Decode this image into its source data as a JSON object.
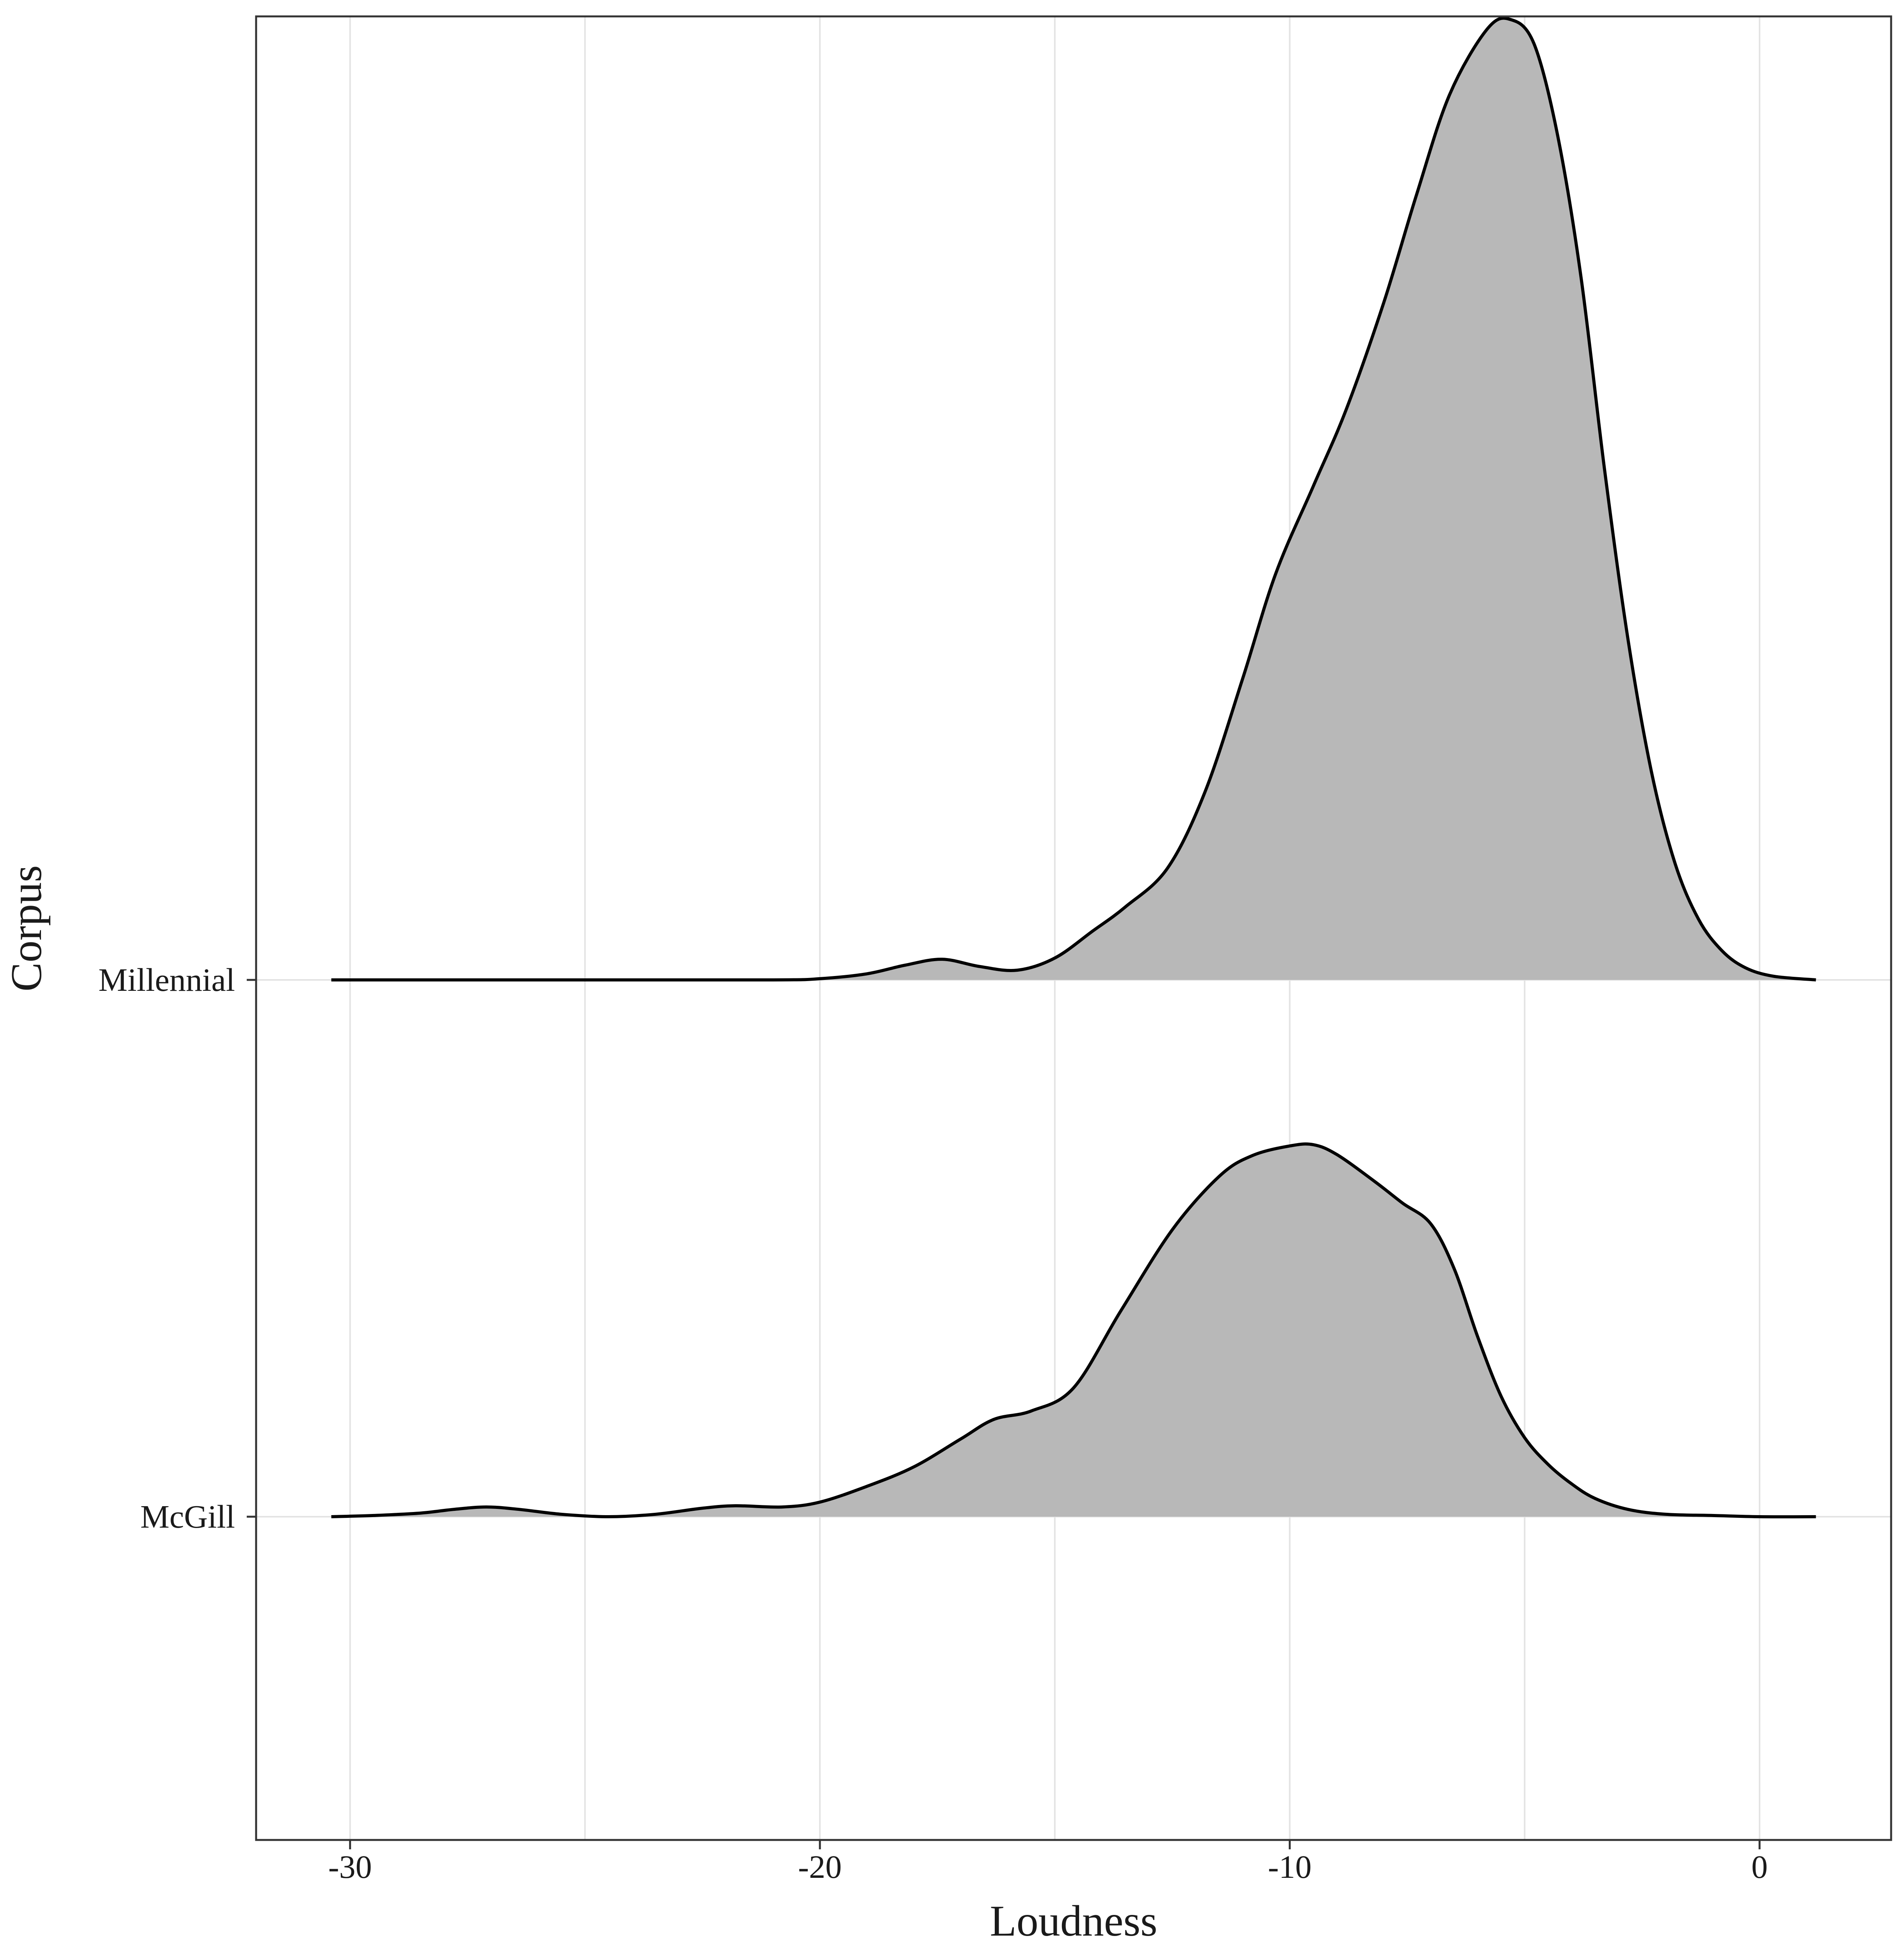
{
  "chart_data": {
    "type": "area",
    "subtype": "ridgeline-density",
    "xlabel": "Loudness",
    "ylabel": "Corpus",
    "xlim": [
      -32,
      2.8
    ],
    "x_ticks": [
      -30,
      -20,
      -10,
      0
    ],
    "x_tick_labels": [
      "-30",
      "-20",
      "-10",
      "0"
    ],
    "x_minor_gridlines": [
      -25,
      -15,
      -5
    ],
    "grid": true,
    "legend": "none",
    "fill_color": "#b8b8b8",
    "line_color": "#000000",
    "categories": [
      "McGill",
      "Millennial"
    ],
    "series": [
      {
        "name": "McGill",
        "baseline_index": 0,
        "x": [
          -30.4,
          -29.5,
          -28.5,
          -27.8,
          -27.1,
          -26.4,
          -25.5,
          -24.5,
          -23.5,
          -22.5,
          -21.8,
          -20.8,
          -20.0,
          -19.0,
          -18.0,
          -17.0,
          -16.3,
          -15.5,
          -14.6,
          -13.6,
          -12.5,
          -11.5,
          -10.8,
          -10.0,
          -9.5,
          -9.0,
          -8.2,
          -7.6,
          -7.0,
          -6.5,
          -6.0,
          -5.5,
          -5.0,
          -4.5,
          -4.0,
          -3.5,
          -2.8,
          -2.0,
          -1.0,
          0.0,
          1.2
        ],
        "y": [
          0.0,
          0.01,
          0.03,
          0.06,
          0.08,
          0.06,
          0.02,
          0.0,
          0.02,
          0.07,
          0.09,
          0.08,
          0.12,
          0.25,
          0.41,
          0.64,
          0.8,
          0.87,
          1.06,
          1.69,
          2.36,
          2.8,
          2.97,
          3.05,
          3.06,
          2.98,
          2.76,
          2.58,
          2.41,
          2.04,
          1.48,
          0.99,
          0.65,
          0.43,
          0.27,
          0.15,
          0.06,
          0.02,
          0.01,
          0.0,
          0.0
        ]
      },
      {
        "name": "Millennial",
        "baseline_index": 1,
        "x": [
          -30.4,
          -25.0,
          -21.0,
          -20.0,
          -19.0,
          -18.2,
          -17.4,
          -16.6,
          -15.8,
          -15.0,
          -14.2,
          -13.5,
          -12.6,
          -11.8,
          -11.0,
          -10.3,
          -9.5,
          -8.8,
          -8.0,
          -7.3,
          -6.6,
          -5.8,
          -5.3,
          -4.8,
          -4.3,
          -3.8,
          -3.3,
          -2.8,
          -2.3,
          -1.8,
          -1.3,
          -0.8,
          -0.3,
          0.3,
          1.2
        ],
        "y": [
          0.0,
          0.0,
          0.0,
          0.01,
          0.05,
          0.12,
          0.17,
          0.11,
          0.08,
          0.18,
          0.4,
          0.6,
          0.92,
          1.55,
          2.48,
          3.34,
          4.06,
          4.69,
          5.57,
          6.46,
          7.28,
          7.82,
          7.9,
          7.7,
          6.95,
          5.78,
          4.2,
          2.8,
          1.71,
          0.96,
          0.5,
          0.24,
          0.1,
          0.03,
          0.0
        ]
      }
    ]
  }
}
